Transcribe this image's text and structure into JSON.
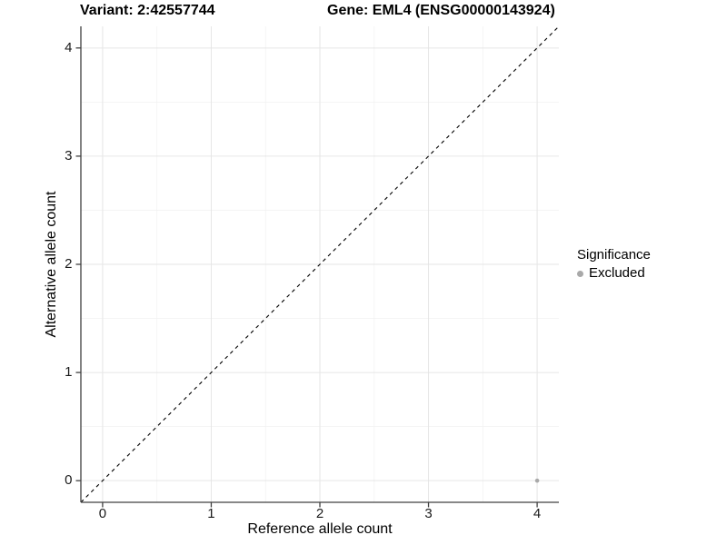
{
  "header": {
    "variant_title": "Variant: 2:42557744",
    "gene_title": "Gene: EML4 (ENSG00000143924)"
  },
  "chart_data": {
    "type": "scatter",
    "titles": [
      "Variant: 2:42557744",
      "Gene: EML4 (ENSG00000143924)"
    ],
    "xlabel": "Reference allele count",
    "ylabel": "Alternative allele count",
    "xlim": [
      -0.2,
      4.2
    ],
    "ylim": [
      -0.2,
      4.2
    ],
    "xticks": [
      0,
      1,
      2,
      3,
      4
    ],
    "yticks": [
      0,
      1,
      2,
      3,
      4
    ],
    "minor_xticks": [
      0.5,
      1.5,
      2.5,
      3.5
    ],
    "minor_yticks": [
      0.5,
      1.5,
      2.5,
      3.5
    ],
    "grid": "major+minor",
    "identity_line": {
      "equation": "y = x",
      "style": "dashed",
      "color": "#000000"
    },
    "series": [
      {
        "name": "Excluded",
        "color": "#a9a9a9",
        "points": [
          [
            4,
            0
          ]
        ]
      }
    ],
    "legend": {
      "title": "Significance",
      "position": "right",
      "items": [
        {
          "label": "Excluded",
          "color": "#a9a9a9"
        }
      ]
    }
  },
  "colors": {
    "background": "#ffffff",
    "grid_major": "#e6e6e6",
    "grid_minor": "#f2f2f2",
    "axis": "#404040",
    "tick_text": "#1a1a1a",
    "point": "#a9a9a9"
  }
}
